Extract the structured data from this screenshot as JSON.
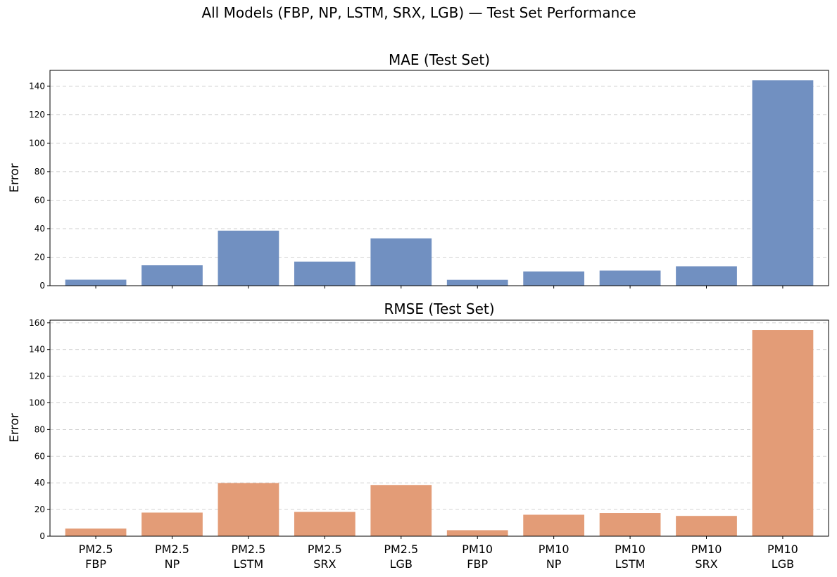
{
  "figure_title": "All Models (FBP, NP, LSTM, SRX, LGB) — Test Set Performance",
  "chart_data": [
    {
      "type": "bar",
      "title": "MAE (Test Set)",
      "ylabel": "Error",
      "xlabel": "",
      "categories": [
        [
          "PM2.5",
          "FBP"
        ],
        [
          "PM2.5",
          "NP"
        ],
        [
          "PM2.5",
          "LSTM"
        ],
        [
          "PM2.5",
          "SRX"
        ],
        [
          "PM2.5",
          "LGB"
        ],
        [
          "PM10",
          "FBP"
        ],
        [
          "PM10",
          "NP"
        ],
        [
          "PM10",
          "LSTM"
        ],
        [
          "PM10",
          "SRX"
        ],
        [
          "PM10",
          "LGB"
        ]
      ],
      "values": [
        4.2,
        14.3,
        38.6,
        16.9,
        33.2,
        4.1,
        10.0,
        10.6,
        13.6,
        144.0
      ],
      "ylim": [
        0,
        151
      ],
      "yticks": [
        0,
        20,
        40,
        60,
        80,
        100,
        120,
        140
      ],
      "grid": true,
      "show_x_labels": false,
      "color": "#7190c1"
    },
    {
      "type": "bar",
      "title": "RMSE (Test Set)",
      "ylabel": "Error",
      "xlabel": "",
      "categories": [
        [
          "PM2.5",
          "FBP"
        ],
        [
          "PM2.5",
          "NP"
        ],
        [
          "PM2.5",
          "LSTM"
        ],
        [
          "PM2.5",
          "SRX"
        ],
        [
          "PM2.5",
          "LGB"
        ],
        [
          "PM10",
          "FBP"
        ],
        [
          "PM10",
          "NP"
        ],
        [
          "PM10",
          "LSTM"
        ],
        [
          "PM10",
          "SRX"
        ],
        [
          "PM10",
          "LGB"
        ]
      ],
      "values": [
        5.7,
        17.7,
        39.9,
        18.2,
        38.4,
        4.5,
        16.1,
        17.4,
        15.2,
        154.6
      ],
      "ylim": [
        0,
        162
      ],
      "yticks": [
        0,
        20,
        40,
        60,
        80,
        100,
        120,
        140,
        160
      ],
      "grid": true,
      "show_x_labels": true,
      "color": "#e39c77"
    }
  ]
}
